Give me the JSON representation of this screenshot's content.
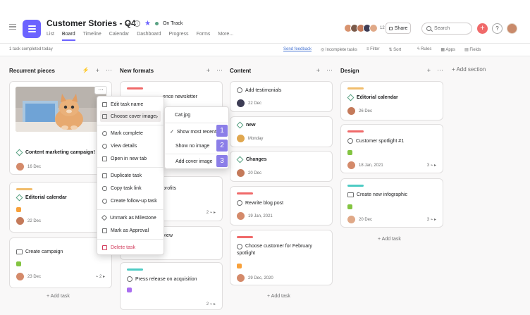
{
  "header": {
    "title": "Customer Stories - Q4",
    "status": "On Track",
    "tabs": [
      "List",
      "Board",
      "Timeline",
      "Calendar",
      "Dashboard",
      "Progress",
      "Forms",
      "More..."
    ],
    "member_count": "12",
    "share_label": "Share",
    "search_placeholder": "Search",
    "plus_label": "+",
    "help_label": "?"
  },
  "toolbar": {
    "completed_text": "1 task completed today",
    "feedback": "Send feedback",
    "incomplete": "Incomplete tasks",
    "filter": "Filter",
    "sort": "Sort",
    "rules": "Rules",
    "apps": "Apps",
    "fields": "Fields"
  },
  "columns": [
    {
      "title": "Recurrent pieces",
      "cards": [
        {
          "title": "Content marketing campaign!",
          "date": "16 Dec"
        },
        {
          "title": "Editorial calendar",
          "date": "22 Dec"
        },
        {
          "title": "Create campaign",
          "date": "23 Dec"
        }
      ],
      "add_task": "+ Add task"
    },
    {
      "title": "New formats",
      "cards": [
        {
          "title": "ence newsletter"
        },
        {
          "title": "profits",
          "subtasks": "2"
        },
        {
          "title": "view"
        },
        {
          "title": "Press release on acquisition",
          "subtasks": "2"
        }
      ]
    },
    {
      "title": "Content",
      "cards": [
        {
          "title": "Add testimonials",
          "date": "22 Dec"
        },
        {
          "title": "new",
          "date": "Monday"
        },
        {
          "title": "Changes",
          "date": "20 Dec"
        },
        {
          "title": "Rewrite blog post",
          "date": "19 Jan, 2021"
        },
        {
          "title": "Choose customer for February spotlight",
          "title_line2": "spotlight",
          "title_line1": "Choose customer for February",
          "date": "29 Dec, 2020"
        }
      ],
      "add_task": "+ Add task"
    },
    {
      "title": "Design",
      "cards": [
        {
          "title": "Editorial calendar",
          "date": "26 Dec"
        },
        {
          "title": "Customer spotlight #1",
          "date": "18 Jan, 2021",
          "subtasks": "3"
        },
        {
          "title": "Create new infographic",
          "date": "20 Dec",
          "subtasks": "3"
        }
      ],
      "add_task": "+ Add task"
    }
  ],
  "add_section": "+ Add section",
  "context_menu": {
    "items": [
      "Edit task name",
      "Choose cover image",
      "Mark complete",
      "View details",
      "Open in new tab",
      "Duplicate task",
      "Copy task link",
      "Create follow-up task",
      "Unmark as Milestone",
      "Mark as Approval",
      "Delete task"
    ]
  },
  "cover_submenu": {
    "items": [
      "Cat.jpg",
      "Show most recent",
      "Show no image",
      "Add cover image"
    ],
    "badges": [
      "1",
      "2",
      "3"
    ]
  },
  "colors": {
    "accent": "#6c63ff",
    "tag_red": "#f06a6a",
    "tag_yellow": "#f1bd6c",
    "tag_cyan": "#4ecbc4",
    "chip_orange": "#f8a13a",
    "chip_green": "#83c441",
    "chip_purple": "#a96ef0",
    "badge": "#8b7ee8",
    "danger": "#d1395a"
  }
}
